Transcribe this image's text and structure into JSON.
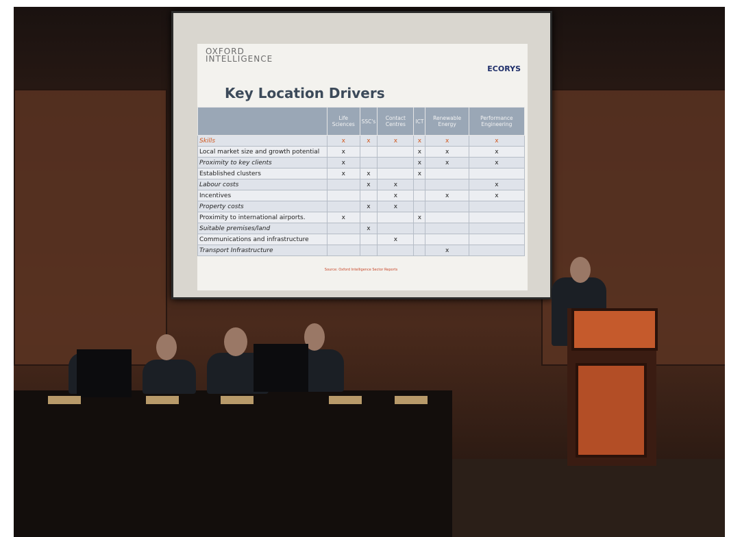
{
  "slide": {
    "logo_left": [
      "OXFORD",
      "INTELLIGENCE"
    ],
    "logo_right": "ECORYS",
    "title": "Key Location Drivers",
    "table": {
      "header": [
        "Life Sciences",
        "SSC's",
        "Contact Centres",
        "ICT",
        "Renewable Energy",
        "Performance Engineering"
      ],
      "rows": [
        {
          "label": "Skills",
          "cells": [
            "x",
            "x",
            "x",
            "x",
            "x",
            "x"
          ]
        },
        {
          "label": "Local market size and growth potential",
          "cells": [
            "x",
            null,
            null,
            "x",
            "x",
            "x"
          ]
        },
        {
          "label": "Proximity to key clients",
          "cells": [
            "x",
            null,
            null,
            "x",
            "x",
            "x"
          ]
        },
        {
          "label": "Established clusters",
          "cells": [
            "x",
            "x",
            null,
            "x",
            null,
            null
          ]
        },
        {
          "label": "Labour costs",
          "cells": [
            null,
            "x",
            "x",
            null,
            null,
            "x"
          ]
        },
        {
          "label": "Incentives",
          "cells": [
            null,
            null,
            "x",
            null,
            "x",
            "x"
          ]
        },
        {
          "label": "Property costs",
          "cells": [
            null,
            "x",
            "x",
            null,
            null,
            null
          ]
        },
        {
          "label": "Proximity to international airports.",
          "cells": [
            "x",
            null,
            null,
            "x",
            null,
            null
          ]
        },
        {
          "label": "Suitable premises/land",
          "cells": [
            null,
            "x",
            null,
            null,
            null,
            null
          ]
        },
        {
          "label": "Communications and infrastructure",
          "cells": [
            null,
            null,
            "x",
            null,
            null,
            null
          ]
        },
        {
          "label": "Transport Infrastructure",
          "cells": [
            null,
            null,
            null,
            null,
            "x",
            null
          ]
        }
      ]
    },
    "source": "Source: Oxford Intelligence Sector Reports"
  }
}
